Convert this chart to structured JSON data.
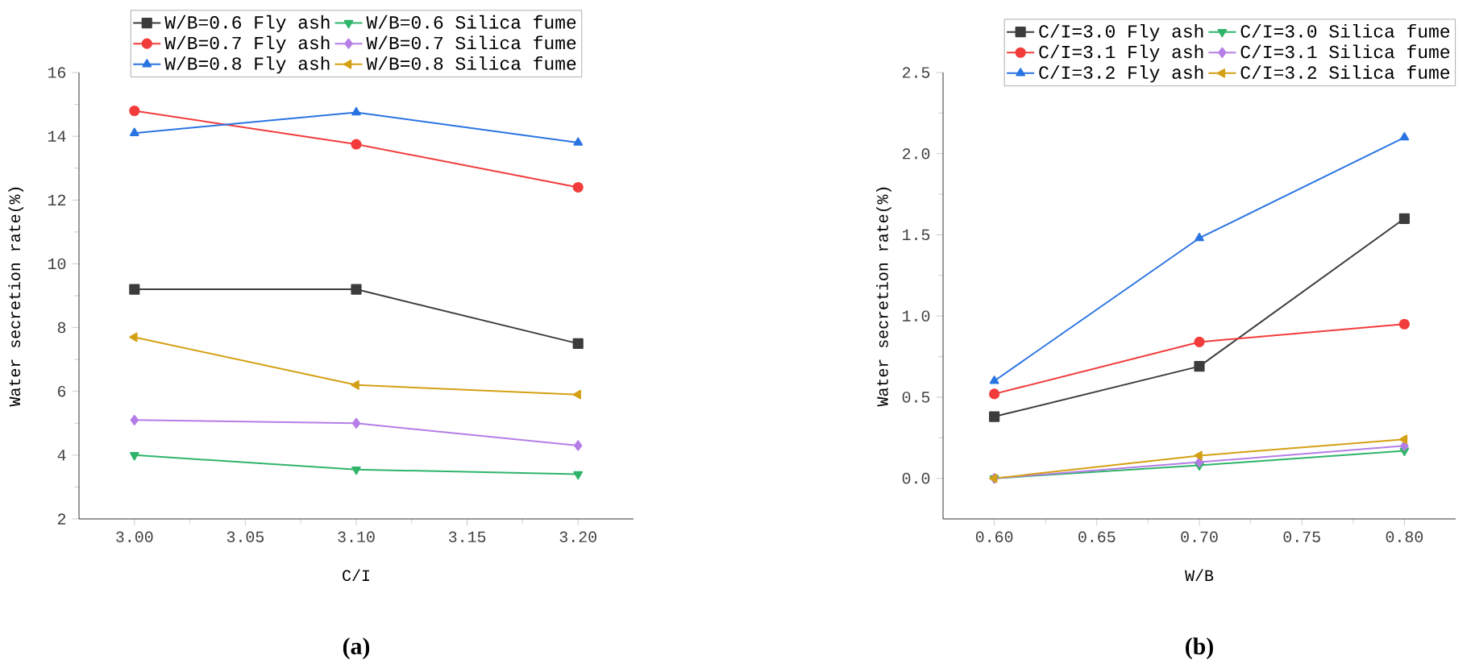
{
  "chart_data": [
    {
      "type": "line",
      "xlabel": "C/I",
      "ylabel": "Water secretion rate(%)",
      "annotations": [
        "(a)"
      ],
      "x": [
        3.0,
        3.1,
        3.2
      ],
      "xlim": [
        2.975,
        3.225
      ],
      "ylim": [
        2,
        16
      ],
      "xticks": [
        {
          "value": 3.0,
          "label": "3.00"
        },
        {
          "value": 3.05,
          "label": "3.05"
        },
        {
          "value": 3.1,
          "label": "3.10"
        },
        {
          "value": 3.15,
          "label": "3.15"
        },
        {
          "value": 3.2,
          "label": "3.20"
        }
      ],
      "yticks": [
        2,
        4,
        6,
        8,
        10,
        12,
        14,
        16
      ],
      "legend": "top",
      "grid": false,
      "series": [
        {
          "name": "W/B=0.6 Fly ash",
          "color": "#3c3c3c",
          "marker": "square",
          "values": [
            9.2,
            9.2,
            7.5
          ]
        },
        {
          "name": "W/B=0.6 Silica fume",
          "color": "#2fb46a",
          "marker": "triangle-down",
          "values": [
            4.0,
            3.55,
            3.4
          ]
        },
        {
          "name": "W/B=0.7 Fly ash",
          "color": "#f23c3c",
          "marker": "circle",
          "values": [
            14.8,
            13.75,
            12.4
          ]
        },
        {
          "name": "W/B=0.7 Silica fume",
          "color": "#b57ee6",
          "marker": "diamond",
          "values": [
            5.1,
            5.0,
            4.3
          ]
        },
        {
          "name": "W/B=0.8 Fly ash",
          "color": "#2a74e2",
          "marker": "triangle",
          "values": [
            14.1,
            14.75,
            13.8
          ]
        },
        {
          "name": "W/B=0.8 Silica fume",
          "color": "#d4a014",
          "marker": "triangle-left",
          "values": [
            7.7,
            6.2,
            5.9
          ]
        }
      ]
    },
    {
      "type": "line",
      "xlabel": "W/B",
      "ylabel": "Water secretion rate(%)",
      "annotations": [
        "(b)"
      ],
      "x": [
        0.6,
        0.7,
        0.8
      ],
      "xlim": [
        0.575,
        0.825
      ],
      "ylim": [
        -0.25,
        2.5
      ],
      "xticks": [
        {
          "value": 0.6,
          "label": "0.60"
        },
        {
          "value": 0.65,
          "label": "0.65"
        },
        {
          "value": 0.7,
          "label": "0.70"
        },
        {
          "value": 0.75,
          "label": "0.75"
        },
        {
          "value": 0.8,
          "label": "0.80"
        }
      ],
      "yticks": [
        {
          "value": 0,
          "label": "0.0"
        },
        {
          "value": 0.5,
          "label": "0.5"
        },
        {
          "value": 1,
          "label": "1.0"
        },
        {
          "value": 1.5,
          "label": "1.5"
        },
        {
          "value": 2,
          "label": "2.0"
        },
        {
          "value": 2.5,
          "label": "2.5"
        }
      ],
      "legend": "top right",
      "grid": false,
      "series": [
        {
          "name": "C/I=3.0 Fly ash",
          "color": "#3c3c3c",
          "marker": "square",
          "values": [
            0.38,
            0.69,
            1.6
          ]
        },
        {
          "name": "C/I=3.0 Silica fume",
          "color": "#2fb46a",
          "marker": "triangle-down",
          "values": [
            0,
            0.08,
            0.17
          ]
        },
        {
          "name": "C/I=3.1 Fly ash",
          "color": "#f23c3c",
          "marker": "circle",
          "values": [
            0.52,
            0.84,
            0.95
          ]
        },
        {
          "name": "C/I=3.1 Silica fume",
          "color": "#b57ee6",
          "marker": "diamond",
          "values": [
            0,
            0.1,
            0.2
          ]
        },
        {
          "name": "C/I=3.2 Fly ash",
          "color": "#2a74e2",
          "marker": "triangle",
          "values": [
            0.6,
            1.48,
            2.1
          ]
        },
        {
          "name": "C/I=3.2 Silica fume",
          "color": "#d4a014",
          "marker": "triangle-left",
          "values": [
            0,
            0.14,
            0.24
          ]
        }
      ]
    }
  ]
}
